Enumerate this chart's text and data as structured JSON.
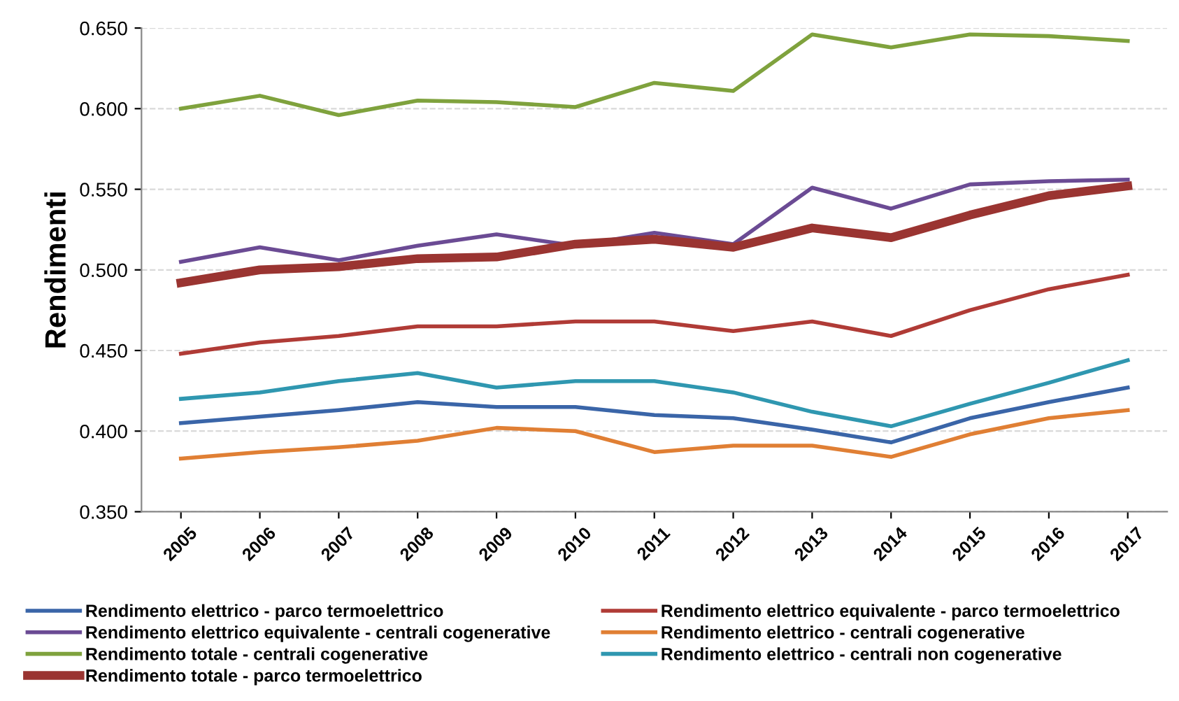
{
  "chart_data": {
    "type": "line",
    "ylabel": "Rendimenti",
    "categories": [
      "2005",
      "2006",
      "2007",
      "2008",
      "2009",
      "2010",
      "2011",
      "2012",
      "2013",
      "2014",
      "2015",
      "2016",
      "2017"
    ],
    "series": [
      {
        "name": "Rendimento elettrico - parco termoelettrico",
        "color": "#3a65a8",
        "values": [
          0.405,
          0.409,
          0.413,
          0.418,
          0.415,
          0.415,
          0.41,
          0.408,
          0.401,
          0.393,
          0.408,
          0.418,
          0.427
        ]
      },
      {
        "name": "Rendimento elettrico equivalente - parco termoelettrico",
        "color": "#b03b36",
        "values": [
          0.448,
          0.455,
          0.459,
          0.465,
          0.465,
          0.468,
          0.468,
          0.462,
          0.468,
          0.459,
          0.475,
          0.488,
          0.497
        ]
      },
      {
        "name": "Rendimento elettrico equivalente - centrali cogenerative",
        "color": "#6b4b94",
        "values": [
          0.505,
          0.514,
          0.506,
          0.515,
          0.522,
          0.515,
          0.523,
          0.516,
          0.551,
          0.538,
          0.553,
          0.555,
          0.556
        ]
      },
      {
        "name": "Rendimento elettrico - centrali cogenerative",
        "color": "#e07f34",
        "values": [
          0.383,
          0.387,
          0.39,
          0.394,
          0.402,
          0.4,
          0.387,
          0.391,
          0.391,
          0.384,
          0.398,
          0.408,
          0.413
        ]
      },
      {
        "name": "Rendimento totale - centrali cogenerative",
        "color": "#7fa23d",
        "values": [
          0.6,
          0.608,
          0.596,
          0.605,
          0.604,
          0.601,
          0.616,
          0.611,
          0.646,
          0.638,
          0.646,
          0.645,
          0.642
        ]
      },
      {
        "name": "Rendimento elettrico - centrali non cogenerative",
        "color": "#2f97b0",
        "values": [
          0.42,
          0.424,
          0.431,
          0.436,
          0.427,
          0.431,
          0.431,
          0.424,
          0.412,
          0.403,
          0.417,
          0.43,
          0.444
        ]
      },
      {
        "name": "Rendimento totale - parco termoelettrico",
        "color": "#9a3431",
        "values": [
          0.492,
          0.5,
          0.502,
          0.507,
          0.508,
          0.516,
          0.519,
          0.514,
          0.526,
          0.52,
          0.534,
          0.546,
          0.552
        ]
      }
    ],
    "ylim": [
      0.35,
      0.65
    ],
    "yticks": [
      {
        "value": 0.35,
        "label": "0.350"
      },
      {
        "value": 0.4,
        "label": "0.400"
      },
      {
        "value": 0.45,
        "label": "0.450"
      },
      {
        "value": 0.5,
        "label": "0.500"
      },
      {
        "value": 0.55,
        "label": "0.550"
      },
      {
        "value": 0.6,
        "label": "0.600"
      },
      {
        "value": 0.65,
        "label": "0.650"
      }
    ],
    "grid": "y",
    "legend": "bottom",
    "marker": "none",
    "line_style": "solid"
  }
}
